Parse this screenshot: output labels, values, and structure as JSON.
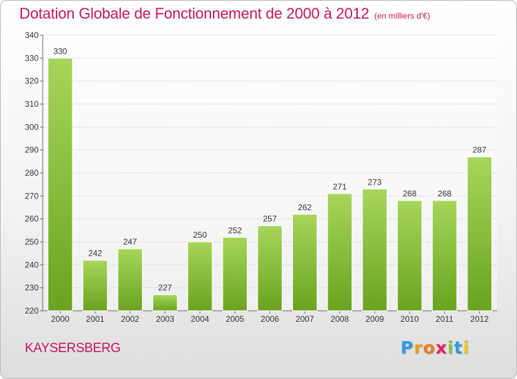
{
  "header": {
    "title": "Dotation Globale de Fonctionnement de 2000 à 2012",
    "subtitle": "(en milliers d'€)"
  },
  "footer": {
    "commune": "KAYSERSBERG",
    "logo": {
      "letters": [
        "P",
        "r",
        "o",
        "x",
        "i",
        "t",
        "i"
      ],
      "colors": [
        "#2f9be0",
        "#f39c12",
        "#e67e22",
        "#e91e63",
        "#8bc34a",
        "#2f9be0",
        "#f1c40f"
      ]
    }
  },
  "chart_data": {
    "type": "bar",
    "categories": [
      "2000",
      "2001",
      "2002",
      "2003",
      "2004",
      "2005",
      "2006",
      "2007",
      "2008",
      "2009",
      "2010",
      "2011",
      "2012"
    ],
    "values": [
      330,
      242,
      247,
      227,
      250,
      252,
      257,
      262,
      271,
      273,
      268,
      268,
      287
    ],
    "ylim": [
      220,
      340
    ],
    "yticks": [
      220,
      230,
      240,
      250,
      260,
      270,
      280,
      290,
      300,
      310,
      320,
      330,
      340
    ],
    "grid": true,
    "bar_color_top": "#a6d65a",
    "bar_color_bottom": "#6aa320"
  }
}
